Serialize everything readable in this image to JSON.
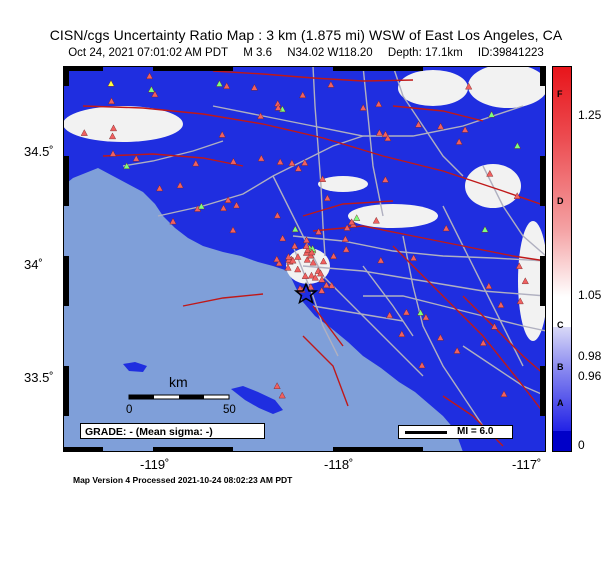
{
  "title": "CISN/cgs Uncertainty Ratio Map : 3 km (1.875 mi) WSW of East Los Angeles, CA",
  "subtitle": {
    "datetime": "Oct 24, 2021 07:01:02 AM PDT",
    "magnitude": "M 3.6",
    "location": "N34.02 W118.20",
    "depth": "Depth: 17.1km",
    "id": "ID:39841223"
  },
  "axes": {
    "lat_labels": [
      "34.5˚",
      "34˚",
      "33.5˚"
    ],
    "lon_labels": [
      "-119˚",
      "-118˚",
      "-117˚"
    ]
  },
  "colorbar": {
    "tick_labels": [
      "1.25",
      "1.05",
      "0.98",
      "0.96",
      "0"
    ],
    "grade_letters": [
      "F",
      "D",
      "C",
      "B",
      "A"
    ],
    "colors": {
      "high": "#e8151b",
      "mid": "#ffffff",
      "low": "#2222e6",
      "zero": "#0000c8"
    }
  },
  "scale": {
    "unit": "km",
    "start": "0",
    "end": "50"
  },
  "grade_box": "GRADE: - (Mean sigma: -)",
  "mi_legend": "MI = 6.0",
  "footer": "Map Version 4 Processed 2021-10-24 08:02:23 AM PDT",
  "map_colors": {
    "ocean": "#7f9fd9",
    "land": "#1f2ee0",
    "uncertain": "#f2f2f2",
    "roads": "#b0b0c0",
    "faults": "#c01818",
    "station_red": "#f06060",
    "station_green": "#7cff7c",
    "station_yellow": "#ffff40"
  }
}
